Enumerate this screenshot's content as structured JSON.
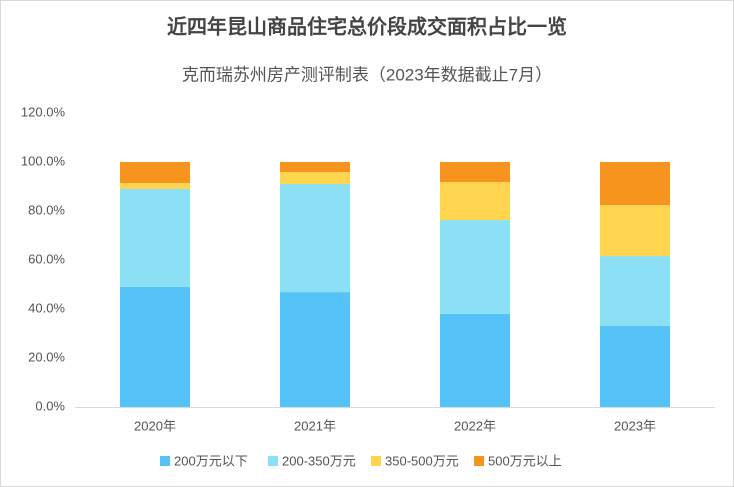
{
  "chart_data": {
    "type": "stacked_bar",
    "title": "近四年昆山商品住宅总价段成交面积占比一览",
    "subtitle": "克而瑞苏州房产测评制表（2023年数据截止7月）",
    "categories": [
      "2020年",
      "2021年",
      "2022年",
      "2023年"
    ],
    "series": [
      {
        "name": "200万元以下",
        "color": "#55c3f7",
        "values": [
          49.0,
          46.9,
          38.0,
          33.1
        ]
      },
      {
        "name": "200-350万元",
        "color": "#8be0f6",
        "values": [
          40.0,
          44.1,
          38.3,
          28.5
        ]
      },
      {
        "name": "350-500万元",
        "color": "#ffd54f",
        "values": [
          2.4,
          4.9,
          15.5,
          20.8
        ]
      },
      {
        "name": "500万元以上",
        "color": "#f7941d",
        "values": [
          8.6,
          4.1,
          8.2,
          17.6
        ]
      }
    ],
    "ylim": [
      0,
      120
    ],
    "yticks": [
      {
        "value": 0,
        "label": "0.0%"
      },
      {
        "value": 20,
        "label": "20.0%"
      },
      {
        "value": 40,
        "label": "40.0%"
      },
      {
        "value": 60,
        "label": "60.0%"
      },
      {
        "value": 80,
        "label": "80.0%"
      },
      {
        "value": 100,
        "label": "100.0%"
      },
      {
        "value": 120,
        "label": "120.0%"
      }
    ],
    "grid": false,
    "legend": "bottom"
  }
}
